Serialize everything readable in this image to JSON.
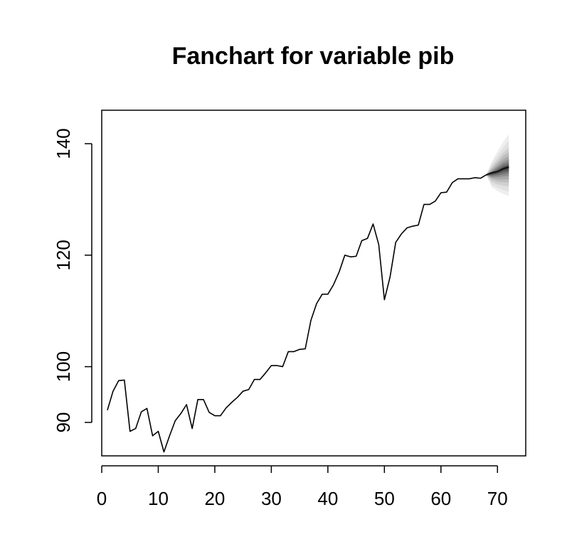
{
  "chart_data": {
    "type": "line",
    "title": "Fanchart for variable pib",
    "xlabel": "",
    "ylabel": "",
    "xlim": [
      0,
      75
    ],
    "ylim": [
      84,
      146
    ],
    "x_ticks": [
      0,
      10,
      20,
      30,
      40,
      50,
      60,
      70
    ],
    "y_ticks": [
      90,
      100,
      120,
      140
    ],
    "grid": false,
    "series": [
      {
        "x": [
          1,
          2,
          3,
          4,
          5,
          6,
          7,
          8,
          9,
          10,
          11,
          12,
          13,
          14,
          15,
          16,
          17,
          18,
          19,
          20,
          21,
          22,
          23,
          24,
          25,
          26,
          27,
          28,
          29,
          30,
          31,
          32,
          33,
          34,
          35,
          36,
          37,
          38,
          39,
          40,
          41,
          42,
          43,
          44,
          45,
          46,
          47,
          48,
          49,
          50,
          51,
          52,
          53,
          54,
          55,
          56,
          57,
          58,
          59,
          60,
          61,
          62,
          63,
          64,
          65,
          66,
          67,
          68
        ],
        "y": [
          92.2,
          95.6,
          97.5,
          97.6,
          88.4,
          88.9,
          91.9,
          92.5,
          87.6,
          88.4,
          84.7,
          87.6,
          90.3,
          91.6,
          93.2,
          88.9,
          94.1,
          94.1,
          91.8,
          91.2,
          91.2,
          92.6,
          93.6,
          94.5,
          95.6,
          95.9,
          97.7,
          97.7,
          98.9,
          100.2,
          100.2,
          100.0,
          102.7,
          102.7,
          103.1,
          103.2,
          108.3,
          111.3,
          113.0,
          113.0,
          114.7,
          117.0,
          120.0,
          119.7,
          119.8,
          122.6,
          123.0,
          125.6,
          121.9,
          112.0,
          116.1,
          122.3,
          123.8,
          124.9,
          125.2,
          125.4,
          129.1,
          129.1,
          129.7,
          131.2,
          131.3,
          133.0,
          133.7,
          133.7,
          133.7,
          133.9,
          133.8,
          134.4
        ],
        "color": "#000000"
      }
    ],
    "forecast": {
      "x": [
        68,
        69,
        70,
        71,
        72
      ],
      "median": [
        134.4,
        134.8,
        135.0,
        135.5,
        135.8
      ],
      "bands": [
        {
          "level": 0.95,
          "lower": [
            134.4,
            132.2,
            131.5,
            131.0,
            130.6
          ],
          "upper": [
            134.4,
            136.8,
            138.6,
            140.3,
            141.7
          ],
          "color": "#eeeeee"
        },
        {
          "level": 0.9,
          "lower": [
            134.4,
            132.6,
            132.1,
            131.7,
            131.4
          ],
          "upper": [
            134.4,
            136.4,
            137.9,
            139.3,
            140.5
          ],
          "color": "#e1e1e1"
        },
        {
          "level": 0.8,
          "lower": [
            134.4,
            133.1,
            132.7,
            132.5,
            132.3
          ],
          "upper": [
            134.4,
            135.9,
            137.2,
            138.4,
            139.3
          ],
          "color": "#d0d0d0"
        },
        {
          "level": 0.7,
          "lower": [
            134.4,
            133.5,
            133.2,
            133.1,
            133.0
          ],
          "upper": [
            134.4,
            135.6,
            136.7,
            137.8,
            138.5
          ],
          "color": "#bdbdbd"
        },
        {
          "level": 0.6,
          "lower": [
            134.4,
            133.8,
            133.6,
            133.6,
            133.6
          ],
          "upper": [
            134.4,
            135.3,
            136.3,
            137.2,
            137.8
          ],
          "color": "#a8a8a8"
        },
        {
          "level": 0.5,
          "lower": [
            134.4,
            134.0,
            134.0,
            134.1,
            134.2
          ],
          "upper": [
            134.4,
            135.1,
            135.9,
            136.7,
            137.2
          ],
          "color": "#8f8f8f"
        },
        {
          "level": 0.4,
          "lower": [
            134.4,
            134.2,
            134.3,
            134.5,
            134.7
          ],
          "upper": [
            134.4,
            134.9,
            135.6,
            136.3,
            136.7
          ],
          "color": "#757575"
        },
        {
          "level": 0.3,
          "lower": [
            134.4,
            134.4,
            134.6,
            134.9,
            135.1
          ],
          "upper": [
            134.4,
            134.8,
            135.3,
            135.9,
            136.3
          ],
          "color": "#595959"
        },
        {
          "level": 0.2,
          "lower": [
            134.4,
            134.5,
            134.8,
            135.2,
            135.5
          ],
          "upper": [
            134.4,
            134.7,
            135.1,
            135.7,
            136.0
          ],
          "color": "#3d3d3d"
        },
        {
          "level": 0.1,
          "lower": [
            134.4,
            134.6,
            134.9,
            135.4,
            135.7
          ],
          "upper": [
            134.4,
            134.6,
            135.0,
            135.6,
            135.9
          ],
          "color": "#222222"
        }
      ]
    }
  }
}
